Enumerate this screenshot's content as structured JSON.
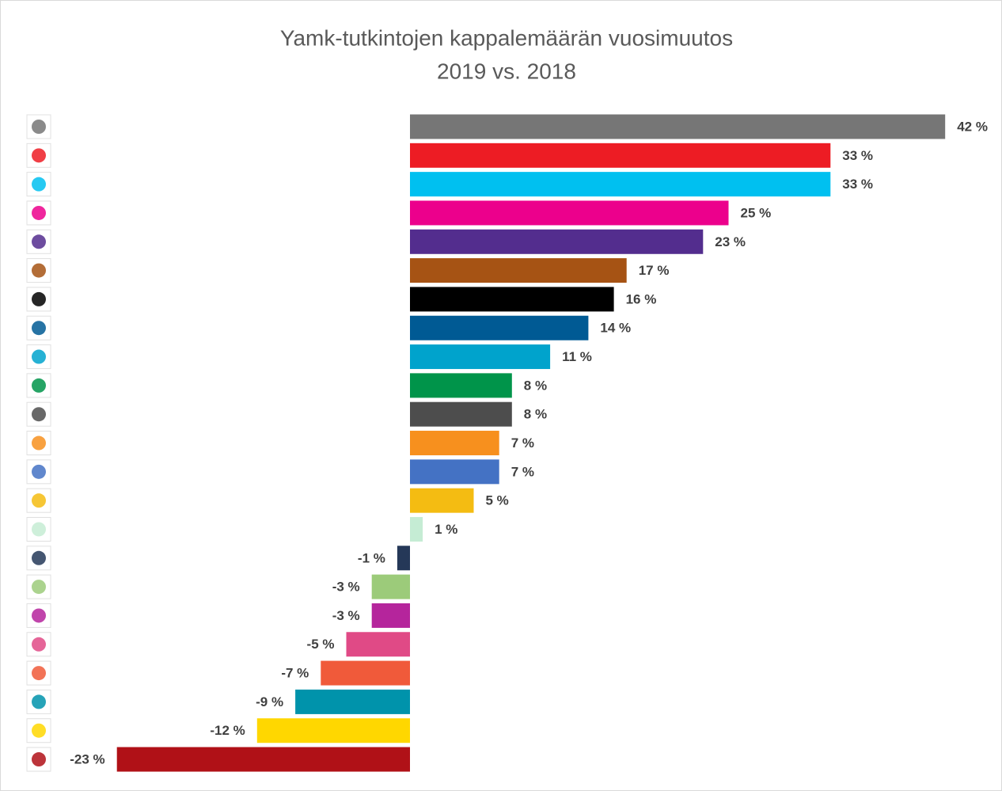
{
  "chart_data": {
    "type": "bar",
    "orientation": "horizontal",
    "title": "Yamk-tutkintojen kappalemäärän vuosimuutos",
    "subtitle": "2019 vs. 2018",
    "categories": [
      null,
      null,
      null,
      null,
      null,
      null,
      null,
      null,
      null,
      null,
      null,
      null,
      null,
      null,
      null,
      null,
      null,
      null,
      null,
      null,
      null,
      null,
      null
    ],
    "values": [
      42,
      33,
      33,
      25,
      23,
      17,
      16,
      14,
      11,
      8,
      8,
      7,
      7,
      5,
      1,
      -1,
      -3,
      -3,
      -5,
      -7,
      -9,
      -12,
      -23
    ],
    "value_labels": [
      "42 %",
      "33 %",
      "33 %",
      "25 %",
      "23 %",
      "17 %",
      "16 %",
      "14 %",
      "11 %",
      "8 %",
      "8 %",
      "7 %",
      "7 %",
      "5 %",
      "1 %",
      "-1 %",
      "-3 %",
      "-3 %",
      "-5 %",
      "-7 %",
      "-9 %",
      "-12 %",
      "-23 %"
    ],
    "colors": [
      "#767676",
      "#ed1c24",
      "#00c0f0",
      "#ec008c",
      "#532d8e",
      "#a65314",
      "#000000",
      "#005a94",
      "#00a3cc",
      "#00944a",
      "#4d4d4d",
      "#f7901e",
      "#4472c4",
      "#f4bc12",
      "#c5ecd4",
      "#253858",
      "#9ccb7a",
      "#b5259c",
      "#e04a86",
      "#f05a3a",
      "#0093ab",
      "#ffd700",
      "#b01117"
    ]
  }
}
